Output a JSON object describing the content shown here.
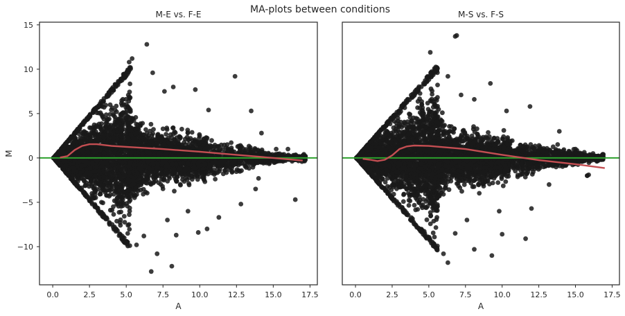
{
  "chart_data": {
    "title": "MA-plots between conditions",
    "type": "scatter",
    "sharey": true,
    "colors": {
      "points": "#1a1a1a",
      "trend": "#c44e52",
      "zero_line": "#2ca02c",
      "frame": "#262626"
    },
    "panels": [
      {
        "title": "M-E vs. F-E",
        "xlabel": "A",
        "ylabel": "M",
        "xlim": [
          -0.9,
          18.0
        ],
        "ylim": [
          -14.3,
          15.3
        ],
        "xticks": [
          0.0,
          2.5,
          5.0,
          7.5,
          10.0,
          12.5,
          15.0,
          17.5
        ],
        "xtick_labels": [
          "0.0",
          "2.5",
          "5.0",
          "7.5",
          "10.0",
          "12.5",
          "15.0",
          "17.5"
        ],
        "yticks": [
          -10,
          -5,
          0,
          5,
          10,
          15
        ],
        "ytick_labels": [
          "−10",
          "−5",
          "0",
          "5",
          "10",
          "15"
        ],
        "zero_line_y": 0,
        "cloud": {
          "apex_x": 0.05,
          "upper_max_a": 5.3,
          "upper_max_m": 10.4,
          "lower_max_a": 5.3,
          "lower_min_m": -10.2,
          "a_max": 17.2
        },
        "trend": [
          [
            0.5,
            0.05
          ],
          [
            1.0,
            0.2
          ],
          [
            1.5,
            0.9
          ],
          [
            2.0,
            1.35
          ],
          [
            2.5,
            1.55
          ],
          [
            3.0,
            1.55
          ],
          [
            4.0,
            1.35
          ],
          [
            5.0,
            1.25
          ],
          [
            7.5,
            1.0
          ],
          [
            10.0,
            0.7
          ],
          [
            12.5,
            0.35
          ],
          [
            15.0,
            0.0
          ],
          [
            17.0,
            -0.3
          ]
        ],
        "outliers": [
          [
            6.4,
            12.8
          ],
          [
            5.4,
            11.2
          ],
          [
            5.2,
            10.8
          ],
          [
            6.8,
            9.6
          ],
          [
            12.4,
            9.2
          ],
          [
            7.6,
            7.5
          ],
          [
            9.7,
            7.7
          ],
          [
            8.2,
            8.0
          ],
          [
            10.6,
            5.4
          ],
          [
            13.5,
            5.3
          ],
          [
            14.2,
            2.8
          ],
          [
            15.2,
            1.0
          ],
          [
            16.0,
            1.0
          ],
          [
            17.1,
            -0.3
          ],
          [
            16.5,
            -4.7
          ],
          [
            14.0,
            -2.3
          ],
          [
            13.8,
            -3.5
          ],
          [
            12.8,
            -5.2
          ],
          [
            10.5,
            -8.0
          ],
          [
            9.9,
            -8.4
          ],
          [
            8.4,
            -8.7
          ],
          [
            7.1,
            -10.8
          ],
          [
            8.1,
            -12.2
          ],
          [
            6.7,
            -12.8
          ],
          [
            6.2,
            -8.8
          ],
          [
            5.7,
            -9.8
          ],
          [
            11.3,
            -6.7
          ],
          [
            9.2,
            -6.0
          ],
          [
            7.8,
            -7.0
          ]
        ]
      },
      {
        "title": "M-S vs. F-S",
        "xlabel": "A",
        "ylabel": "",
        "xlim": [
          -0.9,
          18.0
        ],
        "ylim": [
          -14.3,
          15.3
        ],
        "xticks": [
          0.0,
          2.5,
          5.0,
          7.5,
          10.0,
          12.5,
          15.0,
          17.5
        ],
        "xtick_labels": [
          "0.0",
          "2.5",
          "5.0",
          "7.5",
          "10.0",
          "12.5",
          "15.0",
          "17.5"
        ],
        "yticks": [],
        "ytick_labels": [],
        "zero_line_y": 0,
        "cloud": {
          "apex_x": 0.05,
          "upper_max_a": 5.6,
          "upper_max_m": 10.5,
          "lower_max_a": 5.6,
          "lower_min_m": -10.3,
          "a_max": 16.9
        },
        "trend": [
          [
            0.5,
            -0.1
          ],
          [
            1.0,
            -0.2
          ],
          [
            1.5,
            -0.35
          ],
          [
            2.0,
            -0.2
          ],
          [
            2.5,
            0.3
          ],
          [
            3.0,
            1.0
          ],
          [
            3.5,
            1.3
          ],
          [
            4.0,
            1.4
          ],
          [
            5.0,
            1.35
          ],
          [
            7.5,
            1.0
          ],
          [
            10.0,
            0.35
          ],
          [
            12.5,
            -0.25
          ],
          [
            15.0,
            -0.7
          ],
          [
            17.0,
            -1.15
          ]
        ],
        "outliers": [
          [
            6.8,
            13.7
          ],
          [
            6.9,
            13.8
          ],
          [
            5.1,
            11.9
          ],
          [
            6.3,
            9.2
          ],
          [
            9.2,
            8.4
          ],
          [
            7.2,
            7.1
          ],
          [
            8.1,
            6.6
          ],
          [
            11.9,
            5.8
          ],
          [
            10.3,
            5.3
          ],
          [
            13.9,
            3.0
          ],
          [
            15.0,
            1.0
          ],
          [
            16.2,
            0.5
          ],
          [
            16.9,
            0.4
          ],
          [
            15.8,
            -2.0
          ],
          [
            15.9,
            -1.9
          ],
          [
            15.8,
            -2.0
          ],
          [
            13.2,
            -3.0
          ],
          [
            11.6,
            -9.1
          ],
          [
            10.0,
            -8.6
          ],
          [
            9.3,
            -11.0
          ],
          [
            8.1,
            -10.3
          ],
          [
            7.6,
            -7.0
          ],
          [
            6.8,
            -8.5
          ],
          [
            6.0,
            -10.8
          ],
          [
            6.3,
            -11.8
          ],
          [
            9.8,
            -6.0
          ],
          [
            12.0,
            -5.7
          ]
        ]
      }
    ]
  }
}
